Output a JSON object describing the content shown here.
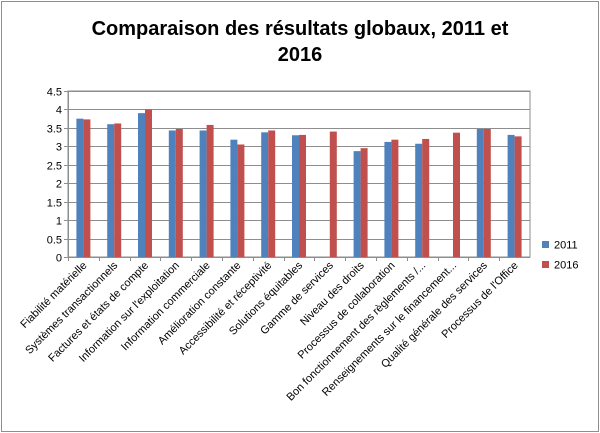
{
  "chart_data": {
    "type": "bar",
    "title": "Comparaison des résultats globaux, 2011 et 2016",
    "title_line1": "Comparaison des résultats globaux, 2011 et",
    "title_line2": "2016",
    "xlabel": "",
    "ylabel": "",
    "ylim": [
      0,
      4.5
    ],
    "yticks": [
      0,
      0.5,
      1,
      1.5,
      2,
      2.5,
      3,
      3.5,
      4,
      4.5
    ],
    "ytick_labels": [
      "0",
      "0.5",
      "1",
      "1.5",
      "2",
      "2.5",
      "3",
      "3.5",
      "4",
      "4.5"
    ],
    "grid": true,
    "legend_position": "right",
    "categories": [
      "Fiabilité matérielle",
      "Systèmes transactionnels",
      "Factures et états de compte",
      "Information sur l'exploitation",
      "Information commerciale",
      "Amélioration constante",
      "Accessibilité et réceptivité",
      "Solutions équitables",
      "Gamme de services",
      "Niveau des droits",
      "Processus de collaboration",
      "Bon fonctionnement des règlements /...",
      "Renseignements sur le financement...",
      "Qualité générale des services",
      "Processus de l'Office"
    ],
    "series": [
      {
        "name": "2011",
        "color": "#4f81bd",
        "values": [
          3.75,
          3.6,
          3.9,
          3.43,
          3.43,
          3.18,
          3.38,
          3.3,
          null,
          2.87,
          3.12,
          3.07,
          null,
          3.47,
          3.31
        ]
      },
      {
        "name": "2016",
        "color": "#c0504d",
        "values": [
          3.73,
          3.62,
          4.0,
          3.47,
          3.58,
          3.05,
          3.43,
          3.31,
          3.4,
          2.95,
          3.18,
          3.2,
          3.37,
          3.47,
          3.27
        ]
      }
    ]
  }
}
